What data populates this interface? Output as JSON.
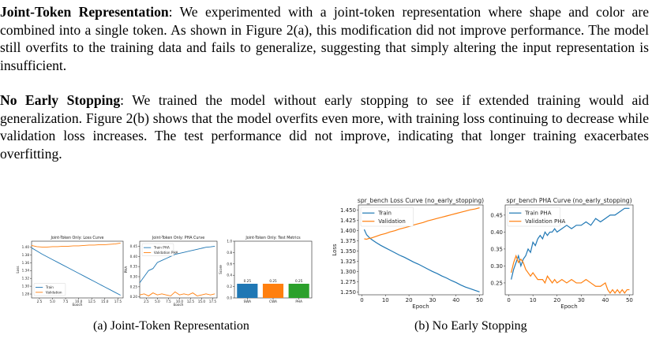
{
  "paragraphs": [
    {
      "heading": "Joint-Token Representation",
      "text": ": We experimented with a joint-token representation where shape and color are combined into a single token. As shown in Figure 2(a), this modification did not improve performance. The model still overfits to the training data and fails to generalize, suggesting that simply altering the input representation is insufficient."
    },
    {
      "heading": "No Early Stopping",
      "text": ": We trained the model without early stopping to see if extended training would aid generalization. Figure 2(b) shows that the model overfits even more, with training loss continuing to decrease while validation loss increases. The test performance did not improve, indicating that longer training exacerbates overfitting."
    }
  ],
  "captions": {
    "a": "(a) Joint-Token Representation",
    "b": "(b) No Early Stopping"
  },
  "colors": {
    "train": "#1f77b4",
    "val": "#ff7f0e",
    "bar3": "#2ca02c"
  },
  "chart_data": [
    {
      "type": "line",
      "title": "Joint-Token Only: Loss Curve",
      "xlabel": "Epoch",
      "ylabel": "Loss",
      "xlim": [
        1,
        18.5
      ],
      "ylim": [
        1.27,
        1.415
      ],
      "xticks": [
        2.5,
        5.0,
        7.5,
        10.0,
        12.5,
        15.0,
        17.5
      ],
      "xticklabels": [
        "2.5",
        "5.0",
        "7.5",
        "10.0",
        "12.5",
        "15.0",
        "17.5"
      ],
      "yticks": [
        1.28,
        1.3,
        1.32,
        1.34,
        1.36,
        1.38,
        1.4
      ],
      "yticklabels": [
        "1.28",
        "1.30",
        "1.32",
        "1.34",
        "1.36",
        "1.38",
        "1.40"
      ],
      "legend": "bottom-left",
      "series": [
        {
          "name": "Train",
          "x": [
            1,
            2,
            3,
            4,
            5,
            6,
            7,
            8,
            9,
            10,
            11,
            12,
            13,
            14,
            15,
            16,
            17,
            18
          ],
          "y": [
            1.398,
            1.39,
            1.382,
            1.375,
            1.368,
            1.361,
            1.354,
            1.347,
            1.34,
            1.333,
            1.326,
            1.319,
            1.312,
            1.305,
            1.298,
            1.291,
            1.284,
            1.277
          ]
        },
        {
          "name": "Validation",
          "x": [
            1,
            2,
            3,
            4,
            5,
            6,
            7,
            8,
            9,
            10,
            11,
            12,
            13,
            14,
            15,
            16,
            17,
            18
          ],
          "y": [
            1.404,
            1.401,
            1.4,
            1.4,
            1.401,
            1.401,
            1.402,
            1.402,
            1.403,
            1.403,
            1.404,
            1.405,
            1.405,
            1.406,
            1.406,
            1.407,
            1.408,
            1.41
          ]
        }
      ]
    },
    {
      "type": "line",
      "title": "Joint-Token Only: PHA Curve",
      "xlabel": "Epoch",
      "ylabel": "PHA",
      "xlim": [
        1,
        18.5
      ],
      "ylim": [
        0.195,
        0.475
      ],
      "xticks": [
        2.5,
        5.0,
        7.5,
        10.0,
        12.5,
        15.0,
        17.5
      ],
      "xticklabels": [
        "2.5",
        "5.0",
        "7.5",
        "10.0",
        "12.5",
        "15.0",
        "17.5"
      ],
      "yticks": [
        0.2,
        0.25,
        0.3,
        0.35,
        0.4,
        0.45
      ],
      "yticklabels": [
        "0.20",
        "0.25",
        "0.30",
        "0.35",
        "0.40",
        "0.45"
      ],
      "legend": "top-left",
      "series": [
        {
          "name": "Train PHA",
          "x": [
            1,
            2,
            3,
            4,
            5,
            6,
            7,
            8,
            9,
            10,
            11,
            12,
            13,
            14,
            15,
            16,
            17,
            18
          ],
          "y": [
            0.27,
            0.3,
            0.33,
            0.34,
            0.37,
            0.38,
            0.39,
            0.4,
            0.41,
            0.415,
            0.42,
            0.425,
            0.43,
            0.435,
            0.44,
            0.445,
            0.447,
            0.45
          ]
        },
        {
          "name": "Validation PHA",
          "x": [
            1,
            2,
            3,
            4,
            5,
            6,
            7,
            8,
            9,
            10,
            11,
            12,
            13,
            14,
            15,
            16,
            17,
            18
          ],
          "y": [
            0.21,
            0.215,
            0.205,
            0.22,
            0.21,
            0.215,
            0.21,
            0.205,
            0.225,
            0.21,
            0.215,
            0.21,
            0.22,
            0.205,
            0.21,
            0.215,
            0.21,
            0.215
          ]
        }
      ]
    },
    {
      "type": "bar",
      "title": "Joint-Token Only: Test Metrics",
      "xlabel": "",
      "ylabel": "Score",
      "ylim": [
        0,
        1.0
      ],
      "yticks": [
        0.0,
        0.2,
        0.4,
        0.6,
        0.8,
        1.0
      ],
      "yticklabels": [
        "0.0",
        "0.2",
        "0.4",
        "0.6",
        "0.8",
        "1.0"
      ],
      "categories": [
        "SWA",
        "CWA",
        "PHA"
      ],
      "values": [
        0.25,
        0.25,
        0.25
      ],
      "data_labels": [
        "0.25",
        "0.25",
        "0.25"
      ]
    },
    {
      "type": "line",
      "title": "spr_bench Loss Curve (no_early_stopping)",
      "xlabel": "Epoch",
      "ylabel": "Loss",
      "xlim": [
        -1.5,
        51.5
      ],
      "ylim": [
        1.243,
        1.463
      ],
      "xticks": [
        0,
        10,
        20,
        30,
        40,
        50
      ],
      "xticklabels": [
        "0",
        "10",
        "20",
        "30",
        "40",
        "50"
      ],
      "yticks": [
        1.25,
        1.275,
        1.3,
        1.325,
        1.35,
        1.375,
        1.4,
        1.425,
        1.45
      ],
      "yticklabels": [
        "1.250",
        "1.275",
        "1.300",
        "1.325",
        "1.350",
        "1.375",
        "1.400",
        "1.425",
        "1.450"
      ],
      "legend": "top-left",
      "series": [
        {
          "name": "Train",
          "x": [
            1,
            2,
            3,
            4,
            5,
            6,
            8,
            10,
            12,
            14,
            16,
            18,
            20,
            22,
            24,
            26,
            28,
            30,
            32,
            34,
            36,
            38,
            40,
            42,
            44,
            46,
            48,
            50
          ],
          "y": [
            1.403,
            1.39,
            1.384,
            1.379,
            1.375,
            1.371,
            1.364,
            1.358,
            1.352,
            1.346,
            1.34,
            1.335,
            1.329,
            1.323,
            1.318,
            1.312,
            1.306,
            1.3,
            1.295,
            1.289,
            1.284,
            1.278,
            1.273,
            1.267,
            1.262,
            1.258,
            1.254,
            1.25
          ]
        },
        {
          "name": "Validation",
          "x": [
            1,
            2,
            3,
            4,
            5,
            6,
            8,
            10,
            12,
            14,
            16,
            18,
            20,
            22,
            24,
            26,
            28,
            30,
            32,
            34,
            36,
            38,
            40,
            42,
            44,
            46,
            48,
            50
          ],
          "y": [
            1.38,
            1.379,
            1.381,
            1.382,
            1.384,
            1.386,
            1.39,
            1.393,
            1.397,
            1.4,
            1.404,
            1.407,
            1.41,
            1.414,
            1.417,
            1.42,
            1.424,
            1.427,
            1.43,
            1.433,
            1.436,
            1.439,
            1.442,
            1.445,
            1.448,
            1.451,
            1.453,
            1.456
          ]
        }
      ]
    },
    {
      "type": "line",
      "title": "spr_bench PHA Curve (no_early_stopping)",
      "xlabel": "Epoch",
      "ylabel": "PHA",
      "xlim": [
        -1.5,
        51.5
      ],
      "ylim": [
        0.215,
        0.48
      ],
      "xticks": [
        0,
        10,
        20,
        30,
        40,
        50
      ],
      "xticklabels": [
        "0",
        "10",
        "20",
        "30",
        "40",
        "50"
      ],
      "yticks": [
        0.25,
        0.3,
        0.35,
        0.4,
        0.45
      ],
      "yticklabels": [
        "0.25",
        "0.30",
        "0.35",
        "0.40",
        "0.45"
      ],
      "legend": "top-left",
      "series": [
        {
          "name": "Train PHA",
          "x": [
            1,
            2,
            3,
            4,
            5,
            6,
            7,
            8,
            9,
            10,
            11,
            12,
            13,
            14,
            15,
            16,
            17,
            18,
            19,
            20,
            22,
            24,
            26,
            28,
            30,
            32,
            34,
            36,
            38,
            40,
            42,
            44,
            46,
            48,
            50
          ],
          "y": [
            0.26,
            0.29,
            0.31,
            0.33,
            0.3,
            0.32,
            0.33,
            0.35,
            0.34,
            0.37,
            0.36,
            0.38,
            0.39,
            0.38,
            0.4,
            0.39,
            0.4,
            0.4,
            0.41,
            0.4,
            0.41,
            0.42,
            0.41,
            0.42,
            0.42,
            0.43,
            0.42,
            0.44,
            0.43,
            0.44,
            0.45,
            0.45,
            0.46,
            0.47,
            0.47
          ]
        },
        {
          "name": "Validation PHA",
          "x": [
            1,
            2,
            3,
            4,
            5,
            6,
            7,
            8,
            9,
            10,
            11,
            12,
            13,
            14,
            15,
            16,
            17,
            18,
            19,
            20,
            22,
            24,
            26,
            28,
            30,
            32,
            34,
            36,
            38,
            40,
            41,
            42,
            43,
            44,
            45,
            46,
            47,
            48,
            49,
            50
          ],
          "y": [
            0.28,
            0.31,
            0.33,
            0.31,
            0.32,
            0.31,
            0.29,
            0.28,
            0.27,
            0.28,
            0.27,
            0.26,
            0.26,
            0.26,
            0.25,
            0.27,
            0.26,
            0.25,
            0.26,
            0.25,
            0.26,
            0.25,
            0.26,
            0.25,
            0.25,
            0.26,
            0.25,
            0.24,
            0.24,
            0.25,
            0.23,
            0.22,
            0.23,
            0.22,
            0.23,
            0.22,
            0.23,
            0.22,
            0.23,
            0.23
          ]
        }
      ]
    }
  ]
}
